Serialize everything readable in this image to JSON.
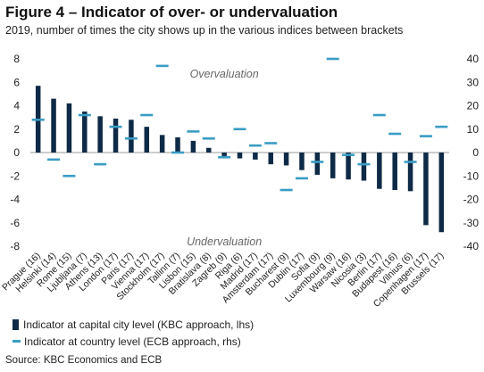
{
  "title": "Figure 4 – Indicator of over- or undervaluation",
  "subtitle": "2019, number of times the city shows up in the various indices between brackets",
  "source": "Source: KBC Economics and ECB",
  "colors": {
    "bar": "#0e2a47",
    "dash": "#3a9cc4",
    "zero_line": "#999999",
    "annotation": "#666666"
  },
  "chart_data": {
    "type": "bar",
    "categories": [
      "Prague (16)",
      "Helsinki (14)",
      "Rome (15)",
      "Ljubljana (7)",
      "Athens (13)",
      "London (17)",
      "Paris (17)",
      "Vienna (17)",
      "Stockholm (17)",
      "Tallinn (7)",
      "Lisbon (15)",
      "Bratislava (8)",
      "Zagreb (9)",
      "Riga (6)",
      "Madrid (17)",
      "Amsterdam (17)",
      "Bucharest (9)",
      "Dublin (17)",
      "Sofia (9)",
      "Luxembourg (9)",
      "Warsaw (16)",
      "Nicosia (3)",
      "Berlin (17)",
      "Budapest (16)",
      "Vilnius (6)",
      "Copenhagen (17)",
      "Brussels (17)"
    ],
    "series": [
      {
        "name": "Indicator at capital city level (KBC approach, lhs)",
        "type": "bar",
        "axis": "left",
        "values": [
          5.7,
          4.6,
          4.2,
          3.5,
          3.1,
          2.9,
          2.8,
          2.2,
          1.5,
          1.3,
          1.0,
          0.4,
          -0.3,
          -0.5,
          -0.6,
          -1.0,
          -1.1,
          -1.5,
          -1.9,
          -2.2,
          -2.3,
          -2.4,
          -3.1,
          -3.2,
          -3.3,
          -6.2,
          -6.8
        ]
      },
      {
        "name": "Indicator at country level (ECB approach, rhs)",
        "type": "dash",
        "axis": "right",
        "values": [
          14,
          -3,
          -10,
          16,
          -5,
          11,
          6,
          16,
          37,
          0,
          9,
          6,
          -2,
          10,
          3,
          4,
          -16,
          -11,
          -4,
          40,
          -1,
          -5,
          16,
          8,
          -4,
          7,
          11
        ]
      }
    ],
    "y_left": {
      "min": -8,
      "max": 8,
      "step": 2
    },
    "y_right": {
      "min": -40,
      "max": 40,
      "step": 10
    },
    "annotations": [
      {
        "text": "Overvaluation",
        "x": "Zagreb (9)",
        "y": 6.7
      },
      {
        "text": "Undervaluation",
        "x": "Zagreb (9)",
        "y": -7.6
      }
    ],
    "grid": false,
    "legend_position": "bottom-left"
  }
}
